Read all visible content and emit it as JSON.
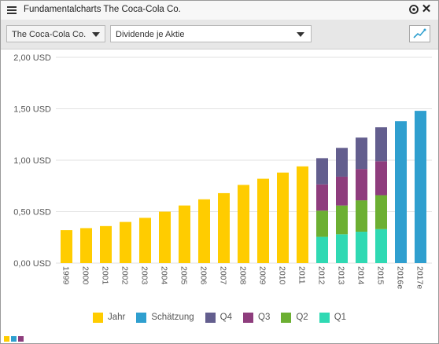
{
  "window": {
    "title": "Fundamentalcharts The Coca-Cola Co."
  },
  "toolbar": {
    "company": "The Coca-Cola Co.",
    "metric": "Dividende je Aktie"
  },
  "icons": {
    "menu": "hamburger-menu-icon",
    "target": "target-icon",
    "close": "close-icon",
    "line_chart": "line-chart-icon"
  },
  "colors": {
    "Jahr": "#ffcc00",
    "Schätzung": "#2f9fcf",
    "Q4": "#635e8e",
    "Q3": "#8e3d7d",
    "Q2": "#6caf32",
    "Q1": "#2fd9b3"
  },
  "chart_data": {
    "type": "bar",
    "ylabel": "",
    "ylim": [
      0,
      2.0
    ],
    "yticks": [
      "2,00 USD",
      "1,50 USD",
      "1,00 USD",
      "0,50 USD",
      "0,00 USD"
    ],
    "grid": true,
    "categories": [
      "1999",
      "2000",
      "2001",
      "2002",
      "2003",
      "2004",
      "2005",
      "2006",
      "2007",
      "2008",
      "2009",
      "2010",
      "2011",
      "2012",
      "2013",
      "2014",
      "2015",
      "2016e",
      "2017e"
    ],
    "annual": [
      0.32,
      0.34,
      0.36,
      0.4,
      0.44,
      0.5,
      0.56,
      0.62,
      0.68,
      0.76,
      0.82,
      0.88,
      0.94,
      null,
      null,
      null,
      null,
      null,
      null
    ],
    "estimate": [
      null,
      null,
      null,
      null,
      null,
      null,
      null,
      null,
      null,
      null,
      null,
      null,
      null,
      null,
      null,
      null,
      null,
      1.38,
      1.48
    ],
    "quarterly_stacks": {
      "2012": [
        0.255,
        0.255,
        0.255,
        0.255
      ],
      "2013": [
        0.28,
        0.28,
        0.28,
        0.28
      ],
      "2014": [
        0.305,
        0.305,
        0.305,
        0.305
      ],
      "2015": [
        0.33,
        0.33,
        0.33,
        0.33
      ]
    },
    "stack_order": [
      "Q1",
      "Q2",
      "Q3",
      "Q4"
    ],
    "legend": [
      "Jahr",
      "Schätzung",
      "Q4",
      "Q3",
      "Q2",
      "Q1"
    ],
    "legend_position": "bottom"
  }
}
